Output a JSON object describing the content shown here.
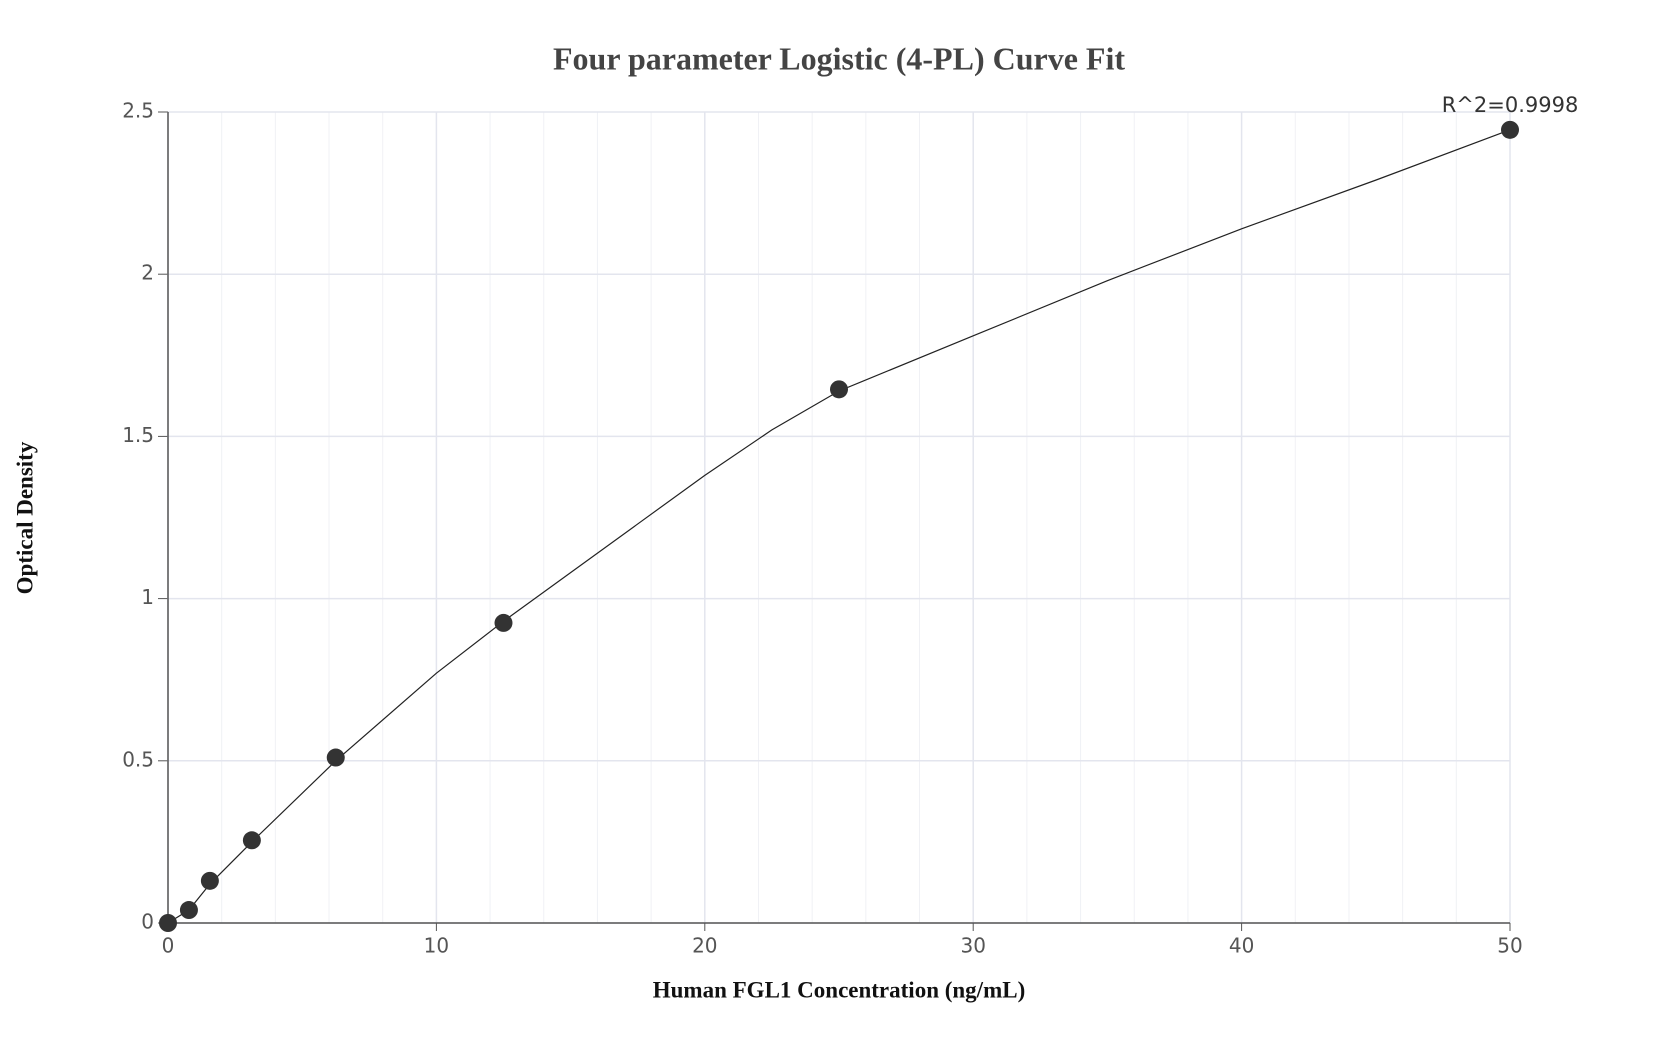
{
  "chart_data": {
    "type": "scatter",
    "title": "Four parameter Logistic (4-PL) Curve Fit",
    "x_label": "Human FGL1 Concentration (ng/mL)",
    "y_label": "Optical Density",
    "annotation": "R^2=0.9998",
    "x": [
      0,
      0.78,
      1.56,
      3.125,
      6.25,
      12.5,
      25,
      50
    ],
    "values": [
      0.0,
      0.04,
      0.13,
      0.255,
      0.51,
      0.925,
      1.645,
      2.445
    ],
    "color": "#333333",
    "fit": {
      "x": [
        0,
        0.78,
        1.56,
        3.125,
        6.25,
        10,
        12.5,
        15,
        20,
        22.5,
        25,
        30,
        35,
        40,
        45,
        50
      ],
      "values": [
        0,
        0.04,
        0.12,
        0.25,
        0.5,
        0.77,
        0.93,
        1.08,
        1.38,
        1.52,
        1.64,
        1.81,
        1.98,
        2.14,
        2.29,
        2.445
      ],
      "color": "#222222"
    },
    "xlim": [
      0,
      50
    ],
    "xticks": [
      0,
      10,
      20,
      30,
      40,
      50
    ],
    "ylim": [
      0,
      2.5
    ],
    "yticks": [
      0,
      0.5,
      1,
      1.5,
      2,
      2.5
    ],
    "grid": true
  }
}
